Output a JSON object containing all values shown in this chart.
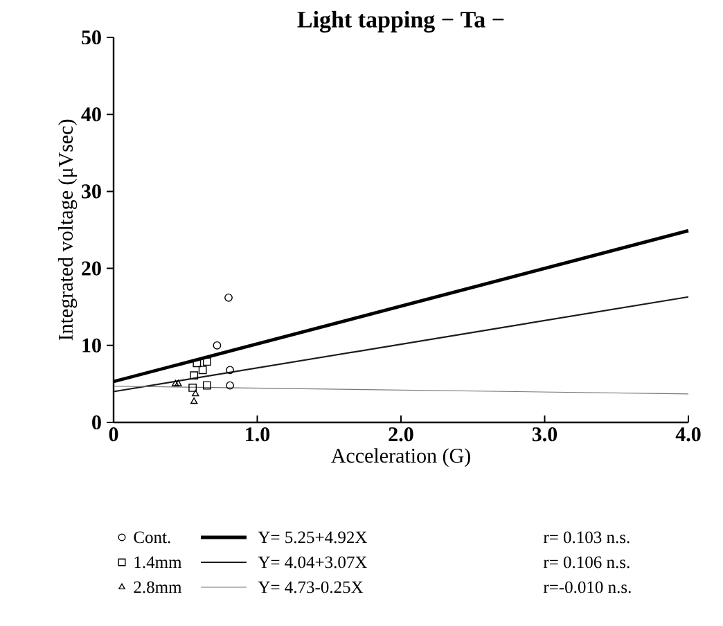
{
  "chart_data": {
    "type": "scatter",
    "title": "Light tapping  − Ta −",
    "xlabel": "Acceleration (G)",
    "ylabel": "Integrated voltage (μVsec)",
    "xlim": [
      0,
      4
    ],
    "ylim": [
      0,
      50
    ],
    "xticks": [
      0,
      {
        "value": 1,
        "label": "1.0"
      },
      {
        "value": 2,
        "label": "2.0"
      },
      {
        "value": 3,
        "label": "3.0"
      },
      {
        "value": 4,
        "label": "4.0"
      }
    ],
    "yticks": [
      0,
      10,
      20,
      30,
      40,
      50
    ],
    "legend": "bottom",
    "series": [
      {
        "name": "Cont.",
        "type": "scatter",
        "marker": "circle",
        "color": "#000000",
        "x": [
          0.8,
          0.72,
          0.81,
          0.81
        ],
        "values": [
          16.2,
          10.0,
          6.8,
          4.8
        ]
      },
      {
        "name": "1.4mm",
        "type": "scatter",
        "marker": "square",
        "color": "#000000",
        "x": [
          0.58,
          0.65,
          0.62,
          0.56,
          0.65,
          0.55
        ],
        "values": [
          7.7,
          7.9,
          6.8,
          6.1,
          4.8,
          4.5
        ]
      },
      {
        "name": "2.8mm",
        "type": "scatter",
        "marker": "triangle",
        "color": "#000000",
        "x": [
          0.43,
          0.45,
          0.57,
          0.56
        ],
        "values": [
          5.0,
          5.0,
          3.7,
          2.7
        ]
      },
      {
        "name": "Y=  5.25+4.92X",
        "type": "line",
        "color": "#000000",
        "x": [
          0,
          4
        ],
        "values": [
          5.3,
          24.9
        ]
      },
      {
        "name": "Y=  4.04+3.07X",
        "type": "line",
        "color": "#1a1a1a",
        "x": [
          0,
          4
        ],
        "values": [
          4.0,
          16.3
        ]
      },
      {
        "name": "Y=  4.73-0.25X",
        "type": "line",
        "color": "#777777",
        "x": [
          0,
          4
        ],
        "values": [
          4.7,
          3.7
        ]
      }
    ],
    "annotations": [
      "r= 0.103  n.s.",
      "r= 0.106  n.s.",
      "r=-0.010  n.s."
    ]
  }
}
